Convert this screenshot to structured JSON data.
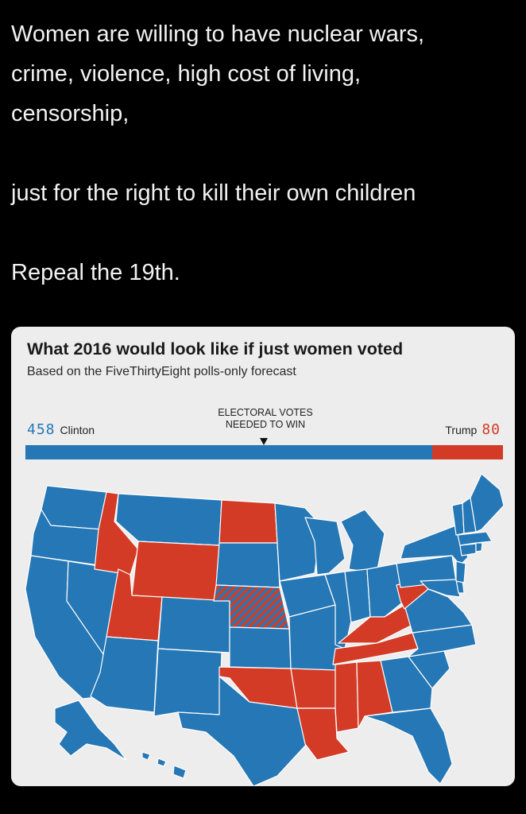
{
  "post": {
    "line1": "Women are willing to have nuclear wars,",
    "line2": "crime, violence, high cost of living,",
    "line3": "censorship,",
    "line4": "just for the right to kill their own children",
    "line5": "Repeal the 19th."
  },
  "card": {
    "title": "What 2016 would look like if just women voted",
    "subtitle": "Based on the FiveThirtyEight polls-only forecast",
    "needed_line1": "ELECTORAL VOTES",
    "needed_line2": "NEEDED TO WIN",
    "clinton_votes": "458",
    "clinton_label": "Clinton",
    "trump_label": "Trump",
    "trump_votes": "80"
  },
  "colors": {
    "clinton": "#2577b5",
    "trump": "#d33b26"
  },
  "chart_data": {
    "type": "bar",
    "categories": [
      "Clinton",
      "Trump"
    ],
    "values": [
      458,
      80
    ],
    "threshold": 270
  },
  "map": {
    "states_clinton": [
      "WA",
      "OR",
      "CA",
      "NV",
      "AZ",
      "NM",
      "CO",
      "MT",
      "SD",
      "MN",
      "WI",
      "MI",
      "IA",
      "MO",
      "KS",
      "TX",
      "IL",
      "IN",
      "OH",
      "PA",
      "NY",
      "ME",
      "VT",
      "NH",
      "MA",
      "CT",
      "RI",
      "NJ",
      "DE",
      "MD",
      "VA",
      "NC",
      "SC",
      "GA",
      "FL",
      "AK",
      "HI"
    ],
    "states_trump": [
      "ID",
      "UT",
      "WY",
      "ND",
      "OK",
      "AR",
      "LA",
      "MS",
      "AL",
      "TN",
      "KY",
      "WV"
    ],
    "states_split": [
      "NE"
    ]
  }
}
